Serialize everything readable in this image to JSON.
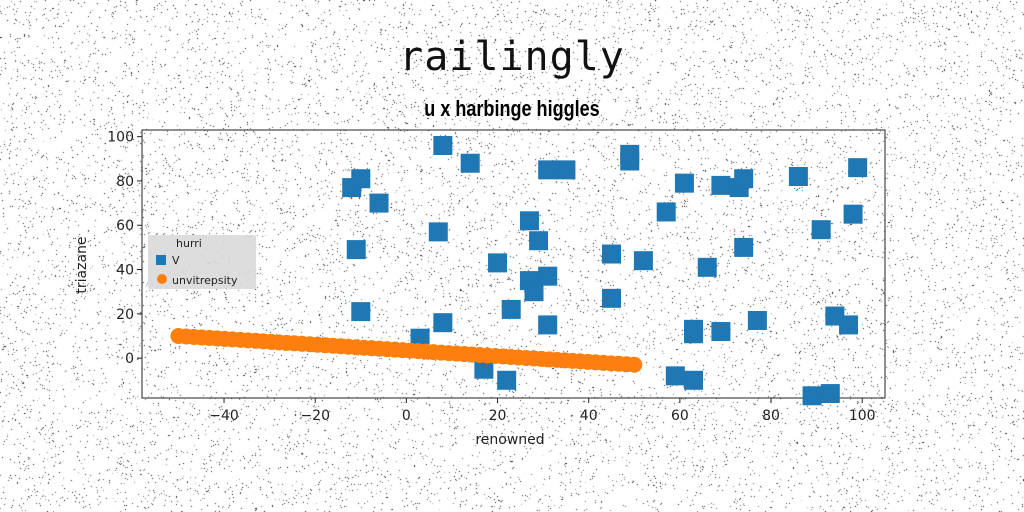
{
  "suptitle": "railingly",
  "chart_data": {
    "type": "scatter",
    "title": "u x harbinge higgles",
    "xlabel": "renowned",
    "ylabel": "triazane",
    "xlim": [
      -58,
      105
    ],
    "ylim": [
      -18,
      103
    ],
    "xticks": [
      -40,
      -20,
      0,
      20,
      40,
      60,
      80,
      100
    ],
    "yticks": [
      0,
      20,
      40,
      60,
      80,
      100
    ],
    "grid": false,
    "legend": {
      "title": "hurri",
      "position": "center-left"
    },
    "series": [
      {
        "name": "V",
        "marker": "square",
        "color": "#1f77b4",
        "points": [
          [
            -12,
            77
          ],
          [
            -10,
            81
          ],
          [
            -11,
            49
          ],
          [
            -6,
            70
          ],
          [
            -10,
            21
          ],
          [
            3,
            9
          ],
          [
            7,
            57
          ],
          [
            8,
            16
          ],
          [
            8,
            96
          ],
          [
            14,
            88
          ],
          [
            17,
            -5
          ],
          [
            20,
            43
          ],
          [
            22,
            -10
          ],
          [
            23,
            22
          ],
          [
            27,
            62
          ],
          [
            27,
            35
          ],
          [
            28,
            30
          ],
          [
            29,
            53
          ],
          [
            31,
            37
          ],
          [
            31,
            15
          ],
          [
            31,
            85
          ],
          [
            35,
            85
          ],
          [
            45,
            47
          ],
          [
            45,
            27
          ],
          [
            49,
            89
          ],
          [
            49,
            92
          ],
          [
            52,
            44
          ],
          [
            57,
            66
          ],
          [
            59,
            -8
          ],
          [
            61,
            79
          ],
          [
            63,
            -10
          ],
          [
            63,
            11
          ],
          [
            63,
            13
          ],
          [
            66,
            41
          ],
          [
            69,
            78
          ],
          [
            69,
            12
          ],
          [
            73,
            77
          ],
          [
            74,
            81
          ],
          [
            74,
            50
          ],
          [
            77,
            17
          ],
          [
            86,
            82
          ],
          [
            89,
            -17
          ],
          [
            91,
            58
          ],
          [
            93,
            -16
          ],
          [
            94,
            19
          ],
          [
            97,
            15
          ],
          [
            98,
            65
          ],
          [
            99,
            86
          ]
        ]
      },
      {
        "name": "unvitrepsity",
        "marker": "circle",
        "color": "#ff7f0e",
        "line": {
          "x_start": -50,
          "x_end": 50,
          "y_start": 10,
          "y_end": -3,
          "count": 60
        }
      }
    ]
  }
}
